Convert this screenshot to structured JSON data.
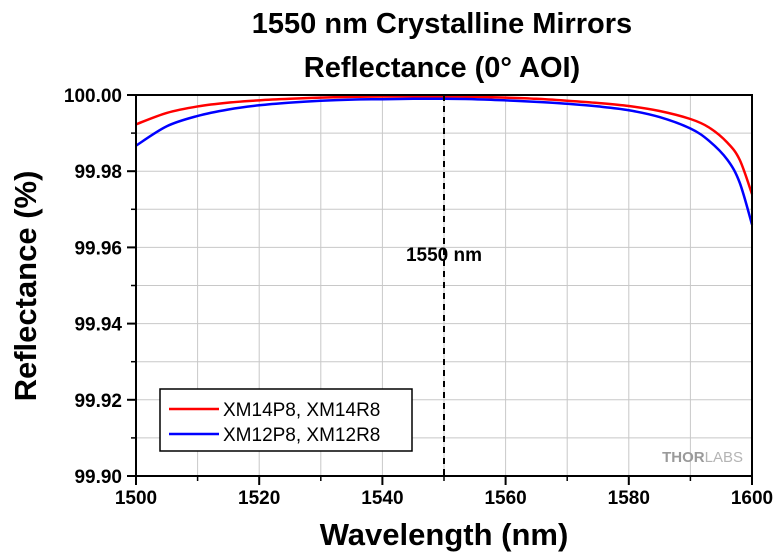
{
  "chart_data": {
    "type": "line",
    "title": [
      "1550 nm Crystalline Mirrors",
      "Reflectance (0° AOI)"
    ],
    "xlabel": "Wavelength (nm)",
    "ylabel": "Reflectance (%)",
    "xlim": [
      1500,
      1600
    ],
    "ylim": [
      99.9,
      100.0
    ],
    "x_ticks": [
      "1500",
      "1520",
      "1540",
      "1560",
      "1580",
      "1600"
    ],
    "y_ticks": [
      "99.90",
      "99.92",
      "99.94",
      "99.96",
      "99.98",
      "100.00"
    ],
    "grid": true,
    "legend_position": "bottom-left",
    "series": [
      {
        "name": "XM14P8, XM14R8",
        "color": "#ff0000",
        "points": [
          [
            1500,
            99.9923
          ],
          [
            1505,
            99.9953
          ],
          [
            1510,
            99.997
          ],
          [
            1515,
            99.998
          ],
          [
            1520,
            99.9986
          ],
          [
            1525,
            99.999
          ],
          [
            1530,
            99.9993
          ],
          [
            1535,
            99.9995
          ],
          [
            1540,
            99.9996
          ],
          [
            1545,
            99.9996
          ],
          [
            1550,
            99.9996
          ],
          [
            1555,
            99.9995
          ],
          [
            1560,
            99.9993
          ],
          [
            1565,
            99.999
          ],
          [
            1570,
            99.9985
          ],
          [
            1575,
            99.9979
          ],
          [
            1580,
            99.9971
          ],
          [
            1585,
            99.9958
          ],
          [
            1590,
            99.9937
          ],
          [
            1593,
            99.9915
          ],
          [
            1596,
            99.9875
          ],
          [
            1598,
            99.983
          ],
          [
            1600,
            99.974
          ]
        ]
      },
      {
        "name": "XM12P8, XM12R8",
        "color": "#0000ff",
        "points": [
          [
            1500,
            99.9867
          ],
          [
            1505,
            99.9918
          ],
          [
            1510,
            99.9945
          ],
          [
            1515,
            99.9962
          ],
          [
            1520,
            99.9973
          ],
          [
            1525,
            99.998
          ],
          [
            1530,
            99.9985
          ],
          [
            1535,
            99.9988
          ],
          [
            1540,
            99.9989
          ],
          [
            1545,
            99.999
          ],
          [
            1550,
            99.999
          ],
          [
            1555,
            99.9989
          ],
          [
            1560,
            99.9986
          ],
          [
            1565,
            99.9982
          ],
          [
            1570,
            99.9977
          ],
          [
            1575,
            99.997
          ],
          [
            1580,
            99.996
          ],
          [
            1585,
            99.9942
          ],
          [
            1590,
            99.9912
          ],
          [
            1593,
            99.988
          ],
          [
            1596,
            99.983
          ],
          [
            1598,
            99.977
          ],
          [
            1600,
            99.966
          ]
        ]
      }
    ],
    "annotations": [
      {
        "text": "1550 nm",
        "x": 1550,
        "y": 99.958,
        "line": "vertical dashed at 1550"
      }
    ],
    "watermark": [
      "THOR",
      "LABS"
    ]
  }
}
